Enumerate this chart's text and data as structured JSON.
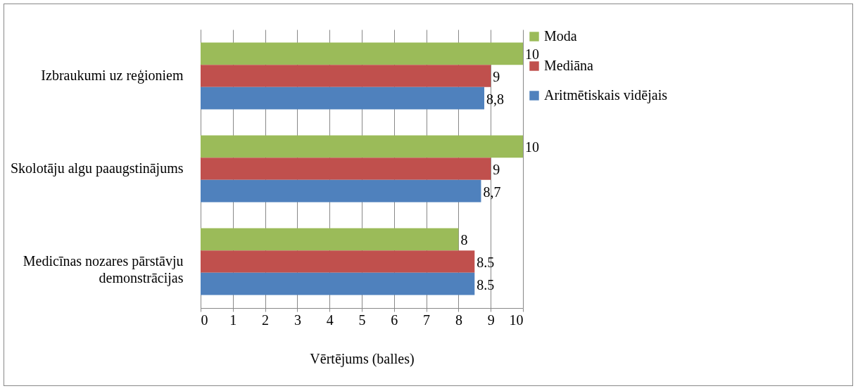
{
  "chart_data": {
    "type": "bar",
    "orientation": "horizontal",
    "categories": [
      "Izbraukumi uz reģioniem",
      "Skolotāju algu paaugstinājums",
      "Medicīnas nozares pārstāvju demonstrācijas"
    ],
    "series": [
      {
        "name": "Moda",
        "color": "#9bbb59",
        "values": [
          10,
          10,
          8
        ],
        "value_labels": [
          "10",
          "10",
          "8"
        ]
      },
      {
        "name": "Mediāna",
        "color": "#c0504d",
        "values": [
          9,
          9,
          8.5
        ],
        "value_labels": [
          "9",
          "9",
          "8.5"
        ]
      },
      {
        "name": "Aritmētiskais vidējais",
        "color": "#4f81bd",
        "values": [
          8.8,
          8.7,
          8.5
        ],
        "value_labels": [
          "8,8",
          "8,7",
          "8.5"
        ]
      }
    ],
    "xlabel": "Vērtējums (balles)",
    "xlim": [
      0,
      10
    ],
    "xticks": [
      0,
      1,
      2,
      3,
      4,
      5,
      6,
      7,
      8,
      9,
      10
    ],
    "grid": "x",
    "legend": "right"
  }
}
